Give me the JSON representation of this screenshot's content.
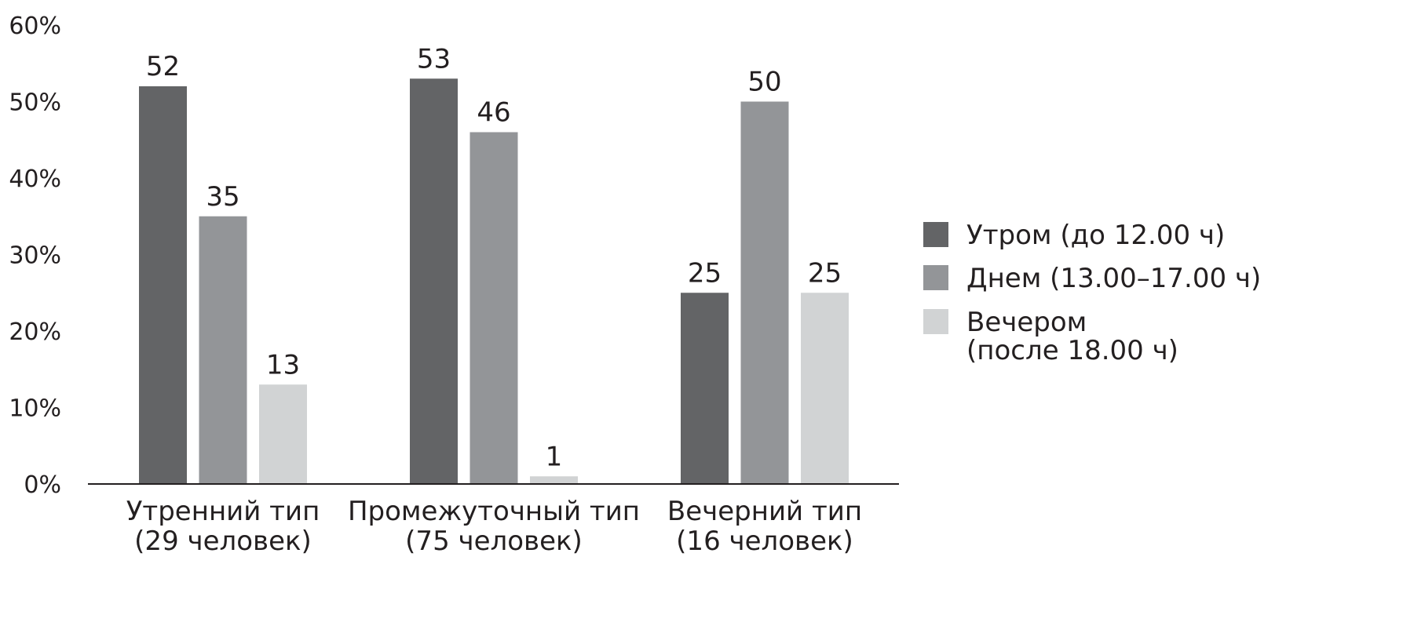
{
  "chart_data": {
    "type": "bar",
    "title": "",
    "xlabel": "",
    "ylabel": "",
    "ylim": [
      0,
      60
    ],
    "yticks": [
      0,
      10,
      20,
      30,
      40,
      50,
      60
    ],
    "ytick_labels": [
      "0%",
      "10%",
      "20%",
      "30%",
      "40%",
      "50%",
      "60%"
    ],
    "grid": false,
    "legend_position": "right",
    "categories": [
      {
        "line1": "Утренний тип",
        "line2": "(29 человек)"
      },
      {
        "line1": "Промежуточный тип",
        "line2": "(75 человек)"
      },
      {
        "line1": "Вечерний тип",
        "line2": "(16 человек)"
      }
    ],
    "series": [
      {
        "name": "Утром (до 12.00 ч)",
        "color": "#636466",
        "values": [
          52,
          53,
          25
        ]
      },
      {
        "name": "Днем (13.00–17.00 ч)",
        "color": "#939598",
        "values": [
          35,
          46,
          50
        ]
      },
      {
        "name": "Вечером (после 18.00 ч)",
        "name_lines": [
          "Вечером",
          "(после 18.00 ч)"
        ],
        "color": "#d1d3d4",
        "values": [
          13,
          1,
          25
        ]
      }
    ]
  }
}
